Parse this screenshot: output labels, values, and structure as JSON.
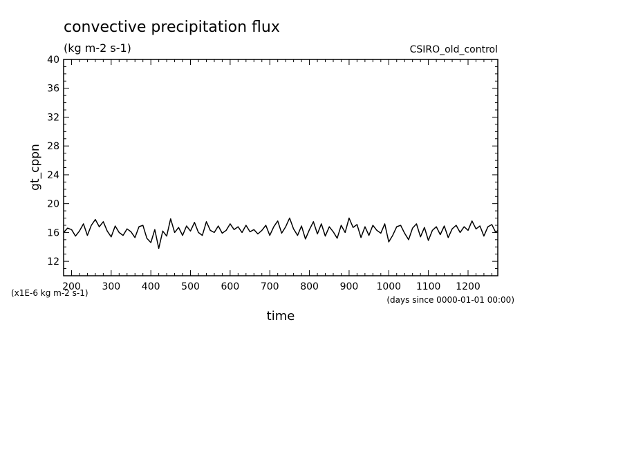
{
  "chart_data": {
    "type": "line",
    "title": "convective precipitation flux",
    "subtitle": "(kg m-2 s-1)",
    "dataset_label": "CSIRO_old_control",
    "xlabel": "time",
    "x_units_note": "(days since 0000-01-01 00:00)",
    "ylabel": "gt_cppn",
    "y_scale_note": "(x1E-6 kg m-2 s-1)",
    "xlim": [
      180,
      1275
    ],
    "ylim": [
      10,
      40
    ],
    "x_ticks": [
      "200",
      "300",
      "400",
      "500",
      "600",
      "700",
      "800",
      "900",
      "1000",
      "1100",
      "1200"
    ],
    "y_ticks": [
      "12",
      "16",
      "20",
      "24",
      "28",
      "32",
      "36",
      "40"
    ],
    "line_color": "#000000",
    "series": [
      {
        "x": [
          180,
          190,
          200,
          210,
          220,
          230,
          240,
          250,
          260,
          270,
          280,
          290,
          300,
          310,
          320,
          330,
          340,
          350,
          360,
          370,
          380,
          390,
          400,
          410,
          420,
          430,
          440,
          450,
          460,
          470,
          480,
          490,
          500,
          510,
          520,
          530,
          540,
          550,
          560,
          570,
          580,
          590,
          600,
          610,
          620,
          630,
          640,
          650,
          660,
          670,
          680,
          690,
          700,
          710,
          720,
          730,
          740,
          750,
          760,
          770,
          780,
          790,
          800,
          810,
          820,
          830,
          840,
          850,
          860,
          870,
          880,
          890,
          900,
          910,
          920,
          930,
          940,
          950,
          960,
          970,
          980,
          990,
          1000,
          1010,
          1020,
          1030,
          1040,
          1050,
          1060,
          1070,
          1080,
          1090,
          1100,
          1110,
          1120,
          1130,
          1140,
          1150,
          1160,
          1170,
          1180,
          1190,
          1200,
          1210,
          1220,
          1230,
          1240,
          1250,
          1260,
          1270,
          1275
        ],
        "values": [
          16.0,
          16.6,
          16.4,
          15.5,
          16.2,
          17.2,
          15.6,
          17.0,
          17.8,
          16.8,
          17.5,
          16.2,
          15.4,
          16.9,
          16.0,
          15.6,
          16.5,
          16.1,
          15.3,
          16.8,
          17.0,
          15.2,
          14.6,
          16.4,
          13.8,
          16.2,
          15.5,
          17.9,
          16.0,
          16.7,
          15.6,
          16.9,
          16.2,
          17.4,
          16.0,
          15.6,
          17.5,
          16.3,
          16.0,
          16.9,
          15.9,
          16.3,
          17.2,
          16.4,
          16.8,
          16.0,
          17.0,
          16.1,
          16.4,
          15.8,
          16.3,
          17.0,
          15.6,
          16.8,
          17.6,
          15.9,
          16.8,
          18.0,
          16.5,
          15.6,
          16.9,
          15.1,
          16.4,
          17.5,
          15.8,
          17.2,
          15.5,
          16.8,
          16.1,
          15.2,
          17.0,
          16.0,
          18.0,
          16.7,
          17.1,
          15.3,
          16.8,
          15.6,
          17.0,
          16.3,
          15.9,
          17.2,
          14.7,
          15.6,
          16.8,
          17.0,
          15.9,
          15.0,
          16.6,
          17.2,
          15.4,
          16.7,
          14.9,
          16.3,
          16.8,
          15.7,
          16.9,
          15.3,
          16.5,
          17.0,
          16.0,
          16.8,
          16.3,
          17.6,
          16.5,
          16.9,
          15.5,
          16.8,
          17.1,
          16.0,
          16.3
        ]
      }
    ]
  }
}
